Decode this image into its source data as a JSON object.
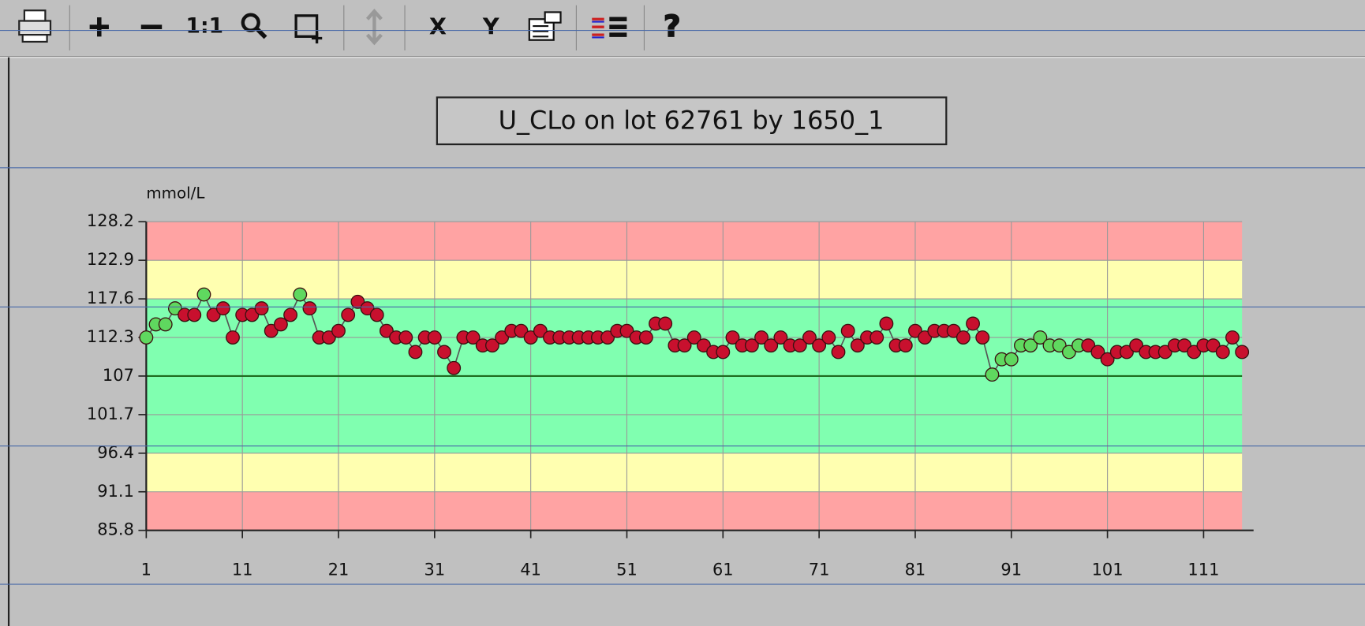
{
  "toolbar": {
    "zoom_reset": "1:1",
    "x_button": "X",
    "y_button": "Y"
  },
  "chart_data": {
    "type": "line",
    "title": "U_CLo on lot 62761 by 1650_1",
    "y_label": "mmol/L",
    "x": [
      1,
      2,
      3,
      4,
      5,
      6,
      7,
      8,
      9,
      10,
      11,
      12,
      13,
      14,
      15,
      16,
      17,
      18,
      19,
      20,
      21,
      22,
      23,
      24,
      25,
      26,
      27,
      28,
      29,
      30,
      31,
      32,
      33,
      34,
      35,
      36,
      37,
      38,
      39,
      40,
      41,
      42,
      43,
      44,
      45,
      46,
      47,
      48,
      49,
      50,
      51,
      52,
      53,
      54,
      55,
      56,
      57,
      58,
      59,
      60,
      61,
      62,
      63,
      64,
      65,
      66,
      67,
      68,
      69,
      70,
      71,
      72,
      73,
      74,
      75,
      76,
      77,
      78,
      79,
      80,
      81,
      82,
      83,
      84,
      85,
      86,
      87,
      88,
      89,
      90,
      91,
      92,
      93,
      94,
      95,
      96,
      97,
      98,
      99,
      100,
      101,
      102,
      103,
      104,
      105,
      106,
      107,
      108,
      109,
      110,
      111,
      112,
      113,
      114,
      115
    ],
    "series": [
      {
        "color": "#555555",
        "values": [
          112.3,
          114.1,
          114.1,
          116.3,
          115.4,
          115.4,
          118.2,
          115.4,
          116.3,
          112.3,
          115.4,
          115.4,
          116.3,
          113.2,
          114.1,
          115.4,
          118.2,
          116.3,
          112.3,
          112.3,
          113.2,
          115.4,
          117.2,
          116.3,
          115.4,
          113.2,
          112.3,
          112.3,
          110.3,
          112.3,
          112.3,
          110.3,
          108.1,
          112.3,
          112.3,
          111.2,
          111.2,
          112.3,
          113.2,
          113.2,
          112.3,
          113.2,
          112.3,
          112.3,
          112.3,
          112.3,
          112.3,
          112.3,
          112.3,
          113.2,
          113.2,
          112.3,
          112.3,
          114.2,
          114.2,
          111.2,
          111.2,
          112.3,
          111.2,
          110.3,
          110.3,
          112.3,
          111.2,
          111.2,
          112.3,
          111.2,
          112.3,
          111.2,
          111.2,
          112.3,
          111.2,
          112.3,
          110.3,
          113.2,
          111.2,
          112.3,
          112.3,
          114.2,
          111.2,
          111.2,
          113.2,
          112.3,
          113.2,
          113.2,
          113.2,
          112.3,
          114.2,
          112.3,
          107.2,
          109.3,
          109.3,
          111.2,
          111.2,
          112.3,
          111.2,
          111.2,
          110.3,
          111.2,
          111.2,
          110.3,
          109.3,
          110.3,
          110.3,
          111.2,
          110.3,
          110.3,
          110.3,
          111.2,
          111.2,
          110.3,
          111.2,
          111.2,
          110.3,
          112.3,
          110.3
        ],
        "marker_colors": [
          "#5fd85f",
          "#5fd85f",
          "#5fd85f",
          "#5fd85f",
          "#c8102e",
          "#c8102e",
          "#5fd85f",
          "#c8102e",
          "#c8102e",
          "#c8102e",
          "#c8102e",
          "#c8102e",
          "#c8102e",
          "#c8102e",
          "#c8102e",
          "#c8102e",
          "#5fd85f",
          "#c8102e",
          "#c8102e",
          "#c8102e",
          "#c8102e",
          "#c8102e",
          "#c8102e",
          "#c8102e",
          "#c8102e",
          "#c8102e",
          "#c8102e",
          "#c8102e",
          "#c8102e",
          "#c8102e",
          "#c8102e",
          "#c8102e",
          "#c8102e",
          "#c8102e",
          "#c8102e",
          "#c8102e",
          "#c8102e",
          "#c8102e",
          "#c8102e",
          "#c8102e",
          "#c8102e",
          "#c8102e",
          "#c8102e",
          "#c8102e",
          "#c8102e",
          "#c8102e",
          "#c8102e",
          "#c8102e",
          "#c8102e",
          "#c8102e",
          "#c8102e",
          "#c8102e",
          "#c8102e",
          "#c8102e",
          "#c8102e",
          "#c8102e",
          "#c8102e",
          "#c8102e",
          "#c8102e",
          "#c8102e",
          "#c8102e",
          "#c8102e",
          "#c8102e",
          "#c8102e",
          "#c8102e",
          "#c8102e",
          "#c8102e",
          "#c8102e",
          "#c8102e",
          "#c8102e",
          "#c8102e",
          "#c8102e",
          "#c8102e",
          "#c8102e",
          "#c8102e",
          "#c8102e",
          "#c8102e",
          "#c8102e",
          "#c8102e",
          "#c8102e",
          "#c8102e",
          "#c8102e",
          "#c8102e",
          "#c8102e",
          "#c8102e",
          "#c8102e",
          "#c8102e",
          "#c8102e",
          "#5fd85f",
          "#5fd85f",
          "#5fd85f",
          "#5fd85f",
          "#5fd85f",
          "#5fd85f",
          "#5fd85f",
          "#5fd85f",
          "#5fd85f",
          "#5fd85f",
          "#c8102e",
          "#c8102e",
          "#c8102e",
          "#c8102e",
          "#c8102e",
          "#c8102e",
          "#c8102e",
          "#c8102e",
          "#c8102e",
          "#c8102e",
          "#c8102e",
          "#c8102e",
          "#c8102e",
          "#c8102e",
          "#c8102e",
          "#c8102e",
          "#c8102e"
        ]
      }
    ],
    "mean": 107,
    "mean_color": "#1f6b1f",
    "bands": [
      {
        "from": 122.9,
        "to": 128.2,
        "color": "#ffa3a3"
      },
      {
        "from": 117.6,
        "to": 122.9,
        "color": "#ffffb0"
      },
      {
        "from": 96.4,
        "to": 117.6,
        "color": "#80ffb0"
      },
      {
        "from": 91.1,
        "to": 96.4,
        "color": "#ffffb0"
      },
      {
        "from": 85.8,
        "to": 91.1,
        "color": "#ffa3a3"
      }
    ],
    "xlim": [
      1,
      116.2
    ],
    "ylim": [
      85.8,
      128.2
    ],
    "xticks": [
      1,
      11,
      21,
      31,
      41,
      51,
      61,
      71,
      81,
      91,
      101,
      111
    ],
    "yticks": [
      85.8,
      91.1,
      96.4,
      101.7,
      107,
      112.3,
      117.6,
      122.9,
      128.2
    ],
    "grid": true
  }
}
